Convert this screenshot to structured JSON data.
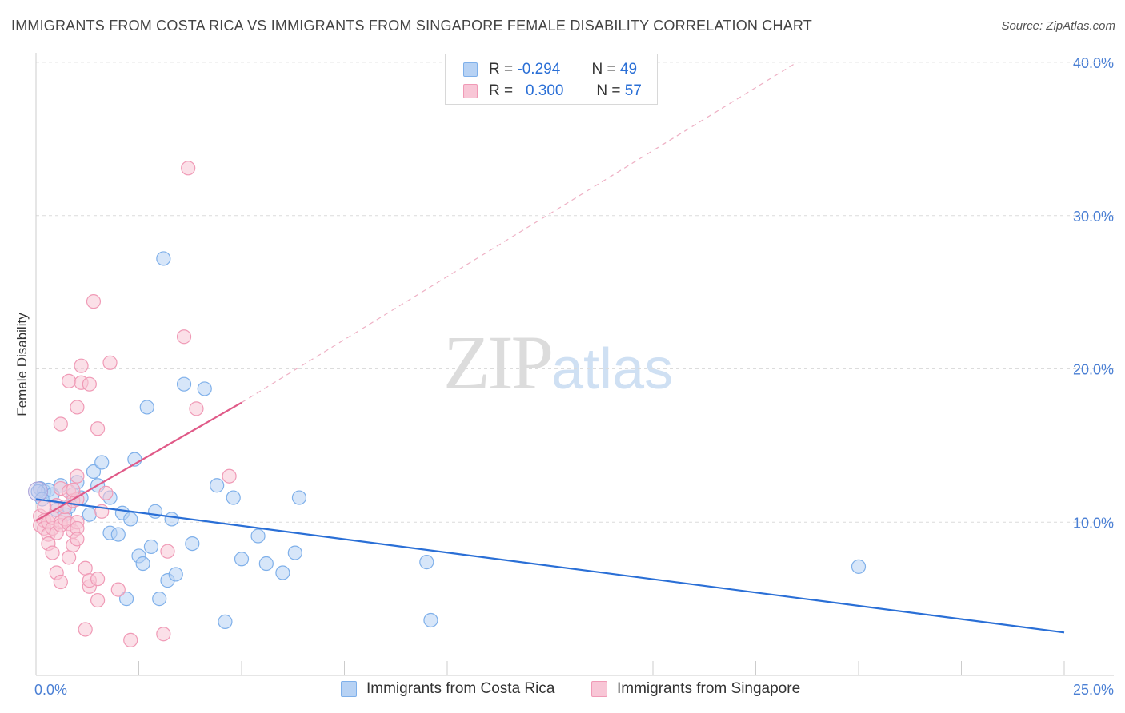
{
  "chart_data": {
    "type": "scatter",
    "title": "IMMIGRANTS FROM COSTA RICA VS IMMIGRANTS FROM SINGAPORE FEMALE DISABILITY CORRELATION CHART",
    "source": "Source: ZipAtlas.com",
    "xlabel": "",
    "ylabel": "Female Disability",
    "xlim": [
      0,
      25
    ],
    "ylim": [
      0,
      40
    ],
    "x_tick_labels": [
      "0.0%",
      "25.0%"
    ],
    "y_ticks": [
      10,
      20,
      30,
      40
    ],
    "y_tick_labels": [
      "10.0%",
      "20.0%",
      "30.0%",
      "40.0%"
    ],
    "grid": true,
    "watermark": {
      "part1": "ZIP",
      "part2": "atlas"
    },
    "legend_stats": [
      {
        "r_label": "R =",
        "r_value": "-0.294",
        "n_label": "N =",
        "n_value": "49"
      },
      {
        "r_label": "R =",
        "r_value": "0.300",
        "n_label": "N =",
        "n_value": "57"
      }
    ],
    "series": [
      {
        "name": "Immigrants from Costa Rica",
        "color": "#7fb0ea",
        "fill": "#b7d2f4",
        "line_color": "#2a6fd6",
        "trend": {
          "x0": 0,
          "y0": 11.5,
          "x1": 25,
          "y1": 2.8
        },
        "points": [
          [
            0.1,
            12.2
          ],
          [
            0.2,
            12.0
          ],
          [
            0.3,
            12.1
          ],
          [
            0.4,
            11.8
          ],
          [
            0.5,
            10.8
          ],
          [
            0.6,
            12.4
          ],
          [
            0.7,
            10.5
          ],
          [
            0.8,
            11.0
          ],
          [
            0.9,
            11.8
          ],
          [
            1.0,
            12.6
          ],
          [
            1.1,
            11.6
          ],
          [
            1.3,
            10.5
          ],
          [
            1.4,
            13.3
          ],
          [
            1.5,
            12.4
          ],
          [
            1.6,
            13.9
          ],
          [
            1.8,
            11.6
          ],
          [
            1.8,
            9.3
          ],
          [
            2.0,
            9.2
          ],
          [
            2.1,
            10.6
          ],
          [
            2.2,
            5.0
          ],
          [
            2.3,
            10.2
          ],
          [
            2.4,
            14.1
          ],
          [
            2.5,
            7.8
          ],
          [
            2.6,
            7.3
          ],
          [
            2.7,
            17.5
          ],
          [
            2.8,
            8.4
          ],
          [
            2.9,
            10.7
          ],
          [
            3.0,
            5.0
          ],
          [
            3.1,
            27.2
          ],
          [
            3.2,
            6.2
          ],
          [
            3.3,
            10.2
          ],
          [
            3.4,
            6.6
          ],
          [
            3.6,
            19.0
          ],
          [
            3.8,
            8.6
          ],
          [
            4.1,
            18.7
          ],
          [
            4.4,
            12.4
          ],
          [
            4.6,
            3.5
          ],
          [
            4.8,
            11.6
          ],
          [
            5.0,
            7.6
          ],
          [
            5.4,
            9.1
          ],
          [
            5.6,
            7.3
          ],
          [
            6.0,
            6.7
          ],
          [
            6.3,
            8.0
          ],
          [
            6.4,
            11.6
          ],
          [
            9.5,
            7.4
          ],
          [
            9.6,
            3.6
          ],
          [
            20.0,
            7.1
          ],
          [
            0.05,
            12.0
          ],
          [
            0.15,
            11.5
          ]
        ]
      },
      {
        "name": "Immigrants from Singapore",
        "color": "#f09ab6",
        "fill": "#f8c6d6",
        "line_color": "#e05a88",
        "trend": {
          "x0": 0,
          "y0": 10.1,
          "x1": 5,
          "y1": 17.8
        },
        "trend_ext": {
          "x0": 5,
          "y0": 17.8,
          "x1": 18.5,
          "y1": 40.0
        },
        "points": [
          [
            0.1,
            10.4
          ],
          [
            0.1,
            9.8
          ],
          [
            0.2,
            10.1
          ],
          [
            0.2,
            9.6
          ],
          [
            0.3,
            10.0
          ],
          [
            0.3,
            9.2
          ],
          [
            0.3,
            8.6
          ],
          [
            0.4,
            9.6
          ],
          [
            0.4,
            10.3
          ],
          [
            0.5,
            11.1
          ],
          [
            0.5,
            9.3
          ],
          [
            0.6,
            12.2
          ],
          [
            0.6,
            10.0
          ],
          [
            0.6,
            9.8
          ],
          [
            0.7,
            10.2
          ],
          [
            0.7,
            11.0
          ],
          [
            0.8,
            9.9
          ],
          [
            0.8,
            12.0
          ],
          [
            0.9,
            11.4
          ],
          [
            0.9,
            9.4
          ],
          [
            1.0,
            10.0
          ],
          [
            1.0,
            9.6
          ],
          [
            0.4,
            8.0
          ],
          [
            0.5,
            6.7
          ],
          [
            0.6,
            6.1
          ],
          [
            0.6,
            16.4
          ],
          [
            0.8,
            19.2
          ],
          [
            0.8,
            7.7
          ],
          [
            0.9,
            8.5
          ],
          [
            1.0,
            13.0
          ],
          [
            1.0,
            17.5
          ],
          [
            1.0,
            11.5
          ],
          [
            1.0,
            8.9
          ],
          [
            1.1,
            20.2
          ],
          [
            1.1,
            19.1
          ],
          [
            1.2,
            7.0
          ],
          [
            1.2,
            3.0
          ],
          [
            1.3,
            5.8
          ],
          [
            1.3,
            6.2
          ],
          [
            1.3,
            19.0
          ],
          [
            1.4,
            24.4
          ],
          [
            1.5,
            6.3
          ],
          [
            1.5,
            16.1
          ],
          [
            1.5,
            4.9
          ],
          [
            1.6,
            10.7
          ],
          [
            1.7,
            11.9
          ],
          [
            1.8,
            20.4
          ],
          [
            2.0,
            5.6
          ],
          [
            2.3,
            2.3
          ],
          [
            3.1,
            2.7
          ],
          [
            3.2,
            8.1
          ],
          [
            3.6,
            22.1
          ],
          [
            3.7,
            33.1
          ],
          [
            3.9,
            17.4
          ],
          [
            4.7,
            13.0
          ],
          [
            0.9,
            12.1
          ],
          [
            0.2,
            11.0
          ]
        ]
      }
    ]
  }
}
